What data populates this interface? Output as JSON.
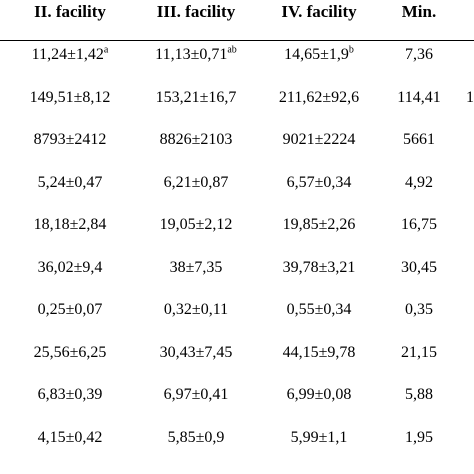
{
  "table": {
    "headers": [
      "II. facility",
      "III. facility",
      "IV. facility",
      "Min."
    ],
    "rows": [
      [
        {
          "v": "11,24±1,42",
          "s": "a"
        },
        {
          "v": "11,13±0,71",
          "s": "ab"
        },
        {
          "v": "14,65±1,9",
          "s": "b"
        },
        {
          "v": "7,36",
          "s": ""
        }
      ],
      [
        {
          "v": "149,51±8,12",
          "s": ""
        },
        {
          "v": "153,21±16,7",
          "s": ""
        },
        {
          "v": "211,62±92,6",
          "s": ""
        },
        {
          "v": "114,41",
          "s": ""
        }
      ],
      [
        {
          "v": "8793±2412",
          "s": ""
        },
        {
          "v": "8826±2103",
          "s": ""
        },
        {
          "v": "9021±2224",
          "s": ""
        },
        {
          "v": "5661",
          "s": ""
        }
      ],
      [
        {
          "v": "5,24±0,47",
          "s": ""
        },
        {
          "v": "6,21±0,87",
          "s": ""
        },
        {
          "v": "6,57±0,34",
          "s": ""
        },
        {
          "v": "4,92",
          "s": ""
        }
      ],
      [
        {
          "v": "18,18±2,84",
          "s": ""
        },
        {
          "v": "19,05±2,12",
          "s": ""
        },
        {
          "v": "19,85±2,26",
          "s": ""
        },
        {
          "v": "16,75",
          "s": ""
        }
      ],
      [
        {
          "v": "36,02±9,4",
          "s": ""
        },
        {
          "v": "38±7,35",
          "s": ""
        },
        {
          "v": "39,78±3,21",
          "s": ""
        },
        {
          "v": "30,45",
          "s": ""
        }
      ],
      [
        {
          "v": "0,25±0,07",
          "s": ""
        },
        {
          "v": "0,32±0,11",
          "s": ""
        },
        {
          "v": "0,55±0,34",
          "s": ""
        },
        {
          "v": "0,35",
          "s": ""
        }
      ],
      [
        {
          "v": "25,56±6,25",
          "s": ""
        },
        {
          "v": "30,43±7,45",
          "s": ""
        },
        {
          "v": "44,15±9,78",
          "s": ""
        },
        {
          "v": "21,15",
          "s": ""
        }
      ],
      [
        {
          "v": "6,83±0,39",
          "s": ""
        },
        {
          "v": "6,97±0,41",
          "s": ""
        },
        {
          "v": "6,99±0,08",
          "s": ""
        },
        {
          "v": "5,88",
          "s": ""
        }
      ],
      [
        {
          "v": "4,15±0,42",
          "s": ""
        },
        {
          "v": "5,85±0,9",
          "s": ""
        },
        {
          "v": "5,99±1,1",
          "s": ""
        },
        {
          "v": "1,95",
          "s": ""
        }
      ]
    ],
    "edge_fragment": "1"
  }
}
